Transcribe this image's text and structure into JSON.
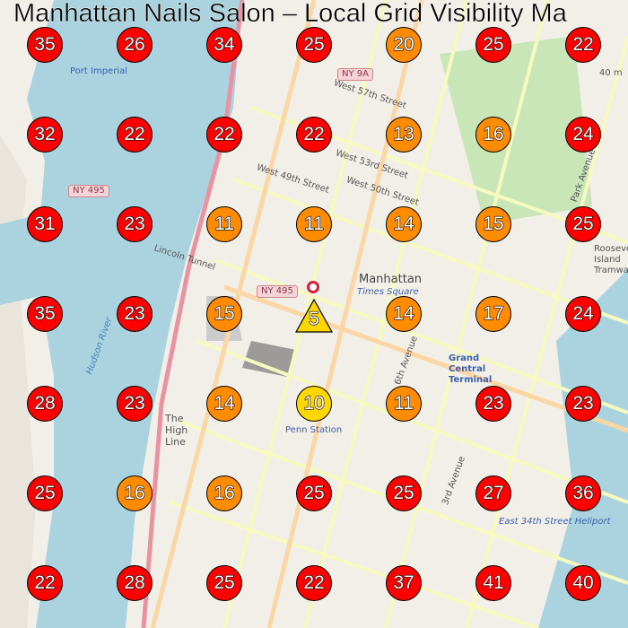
{
  "title": "Manhattan Nails Salon – Local Grid Visibility Ma",
  "colors": {
    "rank_1_10": "#ffd700",
    "rank_11_20": "#ff8c00",
    "rank_21_plus": "#ff0000",
    "business_marker": "#ffd700",
    "water": "#aad3df",
    "land": "#f2efe9"
  },
  "business": {
    "rank": "5",
    "icon": "location-pin-icon"
  },
  "grid": [
    [
      "35",
      "26",
      "34",
      "25",
      "20",
      "25",
      "22"
    ],
    [
      "32",
      "22",
      "22",
      "22",
      "13",
      "16",
      "24"
    ],
    [
      "31",
      "23",
      "11",
      "11",
      "14",
      "15",
      "25"
    ],
    [
      "35",
      "23",
      "15",
      "5",
      "14",
      "17",
      "24"
    ],
    [
      "28",
      "23",
      "14",
      "10",
      "11",
      "23",
      "23"
    ],
    [
      "25",
      "16",
      "16",
      "25",
      "25",
      "27",
      "36"
    ],
    [
      "22",
      "28",
      "25",
      "22",
      "37",
      "41",
      "40"
    ]
  ],
  "map_labels": {
    "manhattan": "Manhattan",
    "times_square": "Times Square",
    "grand_central": "Grand Central Terminal",
    "high_line": "The High Line",
    "hudson": "Hudson River",
    "lincoln_tunnel": "Lincoln Tunnel",
    "w57": "West 57th Street",
    "w53": "West 53rd Street",
    "w50": "West 50th Street",
    "w49": "West 49th Street",
    "e34": "East 34th Street Heliport",
    "park_ave": "Park Avenue",
    "third_ave": "3rd Avenue",
    "sixth_ave": "6th Avenue",
    "roosevelt": "Roosevelt Island Tramway",
    "port_imperial": "Port Imperial",
    "elevation": "40 m",
    "ny9a": "NY 9A",
    "ny495a": "NY 495",
    "ny495b": "NY 495",
    "penn": "Penn Station"
  }
}
